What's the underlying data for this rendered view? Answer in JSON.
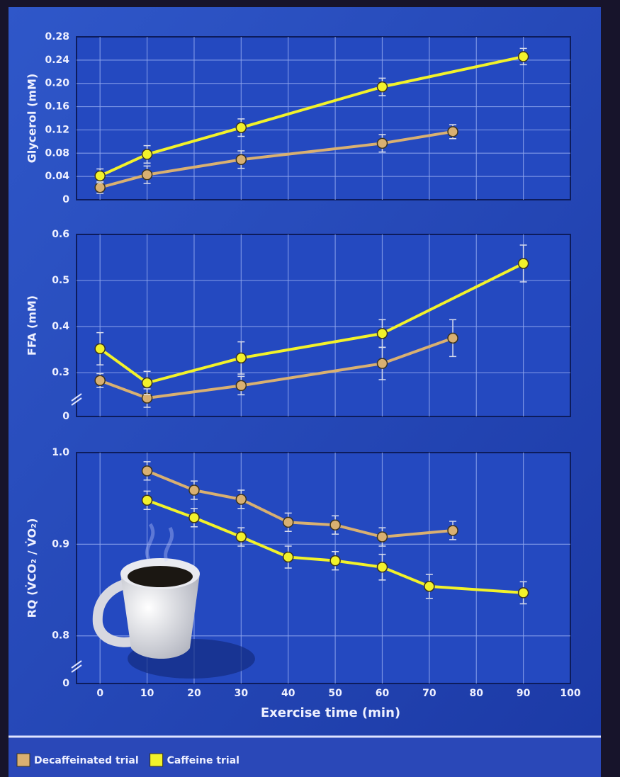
{
  "chart_data": [
    {
      "type": "line",
      "ylabel": "Glycerol (mM)",
      "xlim": [
        -5,
        100
      ],
      "xticks": [
        0,
        10,
        20,
        30,
        40,
        50,
        60,
        70,
        80,
        90,
        100
      ],
      "ylim": [
        0,
        0.28
      ],
      "yticks": [
        0,
        0.04,
        0.08,
        0.12,
        0.16,
        {
          "value": 0.2,
          "label": "0.20"
        },
        0.24,
        0.28
      ],
      "grid": true,
      "series": [
        {
          "name": "Decaffeinated trial",
          "color": "#d9b071",
          "x": [
            0,
            10,
            30,
            60,
            75
          ],
          "values": [
            0.021,
            0.043,
            0.069,
            0.097,
            0.117
          ],
          "errors": [
            0.01,
            0.015,
            0.015,
            0.015,
            0.012
          ]
        },
        {
          "name": "Caffeine trial",
          "color": "#f2f22a",
          "x": [
            0,
            10,
            30,
            60,
            90
          ],
          "values": [
            0.041,
            0.078,
            0.124,
            0.194,
            0.246
          ],
          "errors": [
            0.012,
            0.015,
            0.015,
            0.015,
            0.014
          ]
        }
      ]
    },
    {
      "type": "line",
      "ylabel": "FFA (mM)",
      "xlim": [
        -5,
        100
      ],
      "xticks": [
        0,
        10,
        20,
        30,
        40,
        50,
        60,
        70,
        80,
        90,
        100
      ],
      "ylim": [
        0.205,
        0.6
      ],
      "yticks": [
        0.3,
        0.4,
        0.5,
        0.6
      ],
      "break_tick": 0,
      "grid": true,
      "series": [
        {
          "color": "#d9b071",
          "x": [
            0,
            10,
            30,
            60,
            75
          ],
          "values": [
            0.283,
            0.245,
            0.272,
            0.32,
            0.375
          ],
          "errors": [
            0.015,
            0.02,
            0.02,
            0.035,
            0.04
          ]
        },
        {
          "color": "#f2f22a",
          "x": [
            0,
            10,
            30,
            60,
            90
          ],
          "values": [
            0.352,
            0.278,
            0.332,
            0.385,
            0.537
          ],
          "errors": [
            0.035,
            0.025,
            0.035,
            0.03,
            0.04
          ]
        }
      ]
    },
    {
      "type": "line",
      "ylabel": "RQ (V̇CO₂ / V̇O₂)",
      "xlabel": "Exercise time (min)",
      "xtick_labels": true,
      "xlim": [
        -5,
        100
      ],
      "xticks": [
        0,
        10,
        20,
        30,
        40,
        50,
        60,
        70,
        80,
        90,
        100
      ],
      "ylim": [
        0.748,
        1.0
      ],
      "yticks": [
        0.8,
        0.9,
        {
          "value": 1,
          "label": "1.0"
        }
      ],
      "break_tick": 0,
      "grid": true,
      "series": [
        {
          "color": "#d9b071",
          "x": [
            10,
            20,
            30,
            40,
            50,
            60,
            75
          ],
          "values": [
            0.98,
            0.959,
            0.949,
            0.924,
            0.921,
            0.908,
            0.915
          ],
          "errors": [
            0.01,
            0.01,
            0.01,
            0.01,
            0.01,
            0.01,
            0.01
          ]
        },
        {
          "color": "#f2f22a",
          "x": [
            10,
            20,
            30,
            40,
            50,
            60,
            70,
            90
          ],
          "values": [
            0.948,
            0.929,
            0.908,
            0.886,
            0.882,
            0.875,
            0.854,
            0.847
          ],
          "errors": [
            0.01,
            0.01,
            0.01,
            0.012,
            0.01,
            0.014,
            0.013,
            0.012
          ]
        }
      ]
    }
  ]
}
